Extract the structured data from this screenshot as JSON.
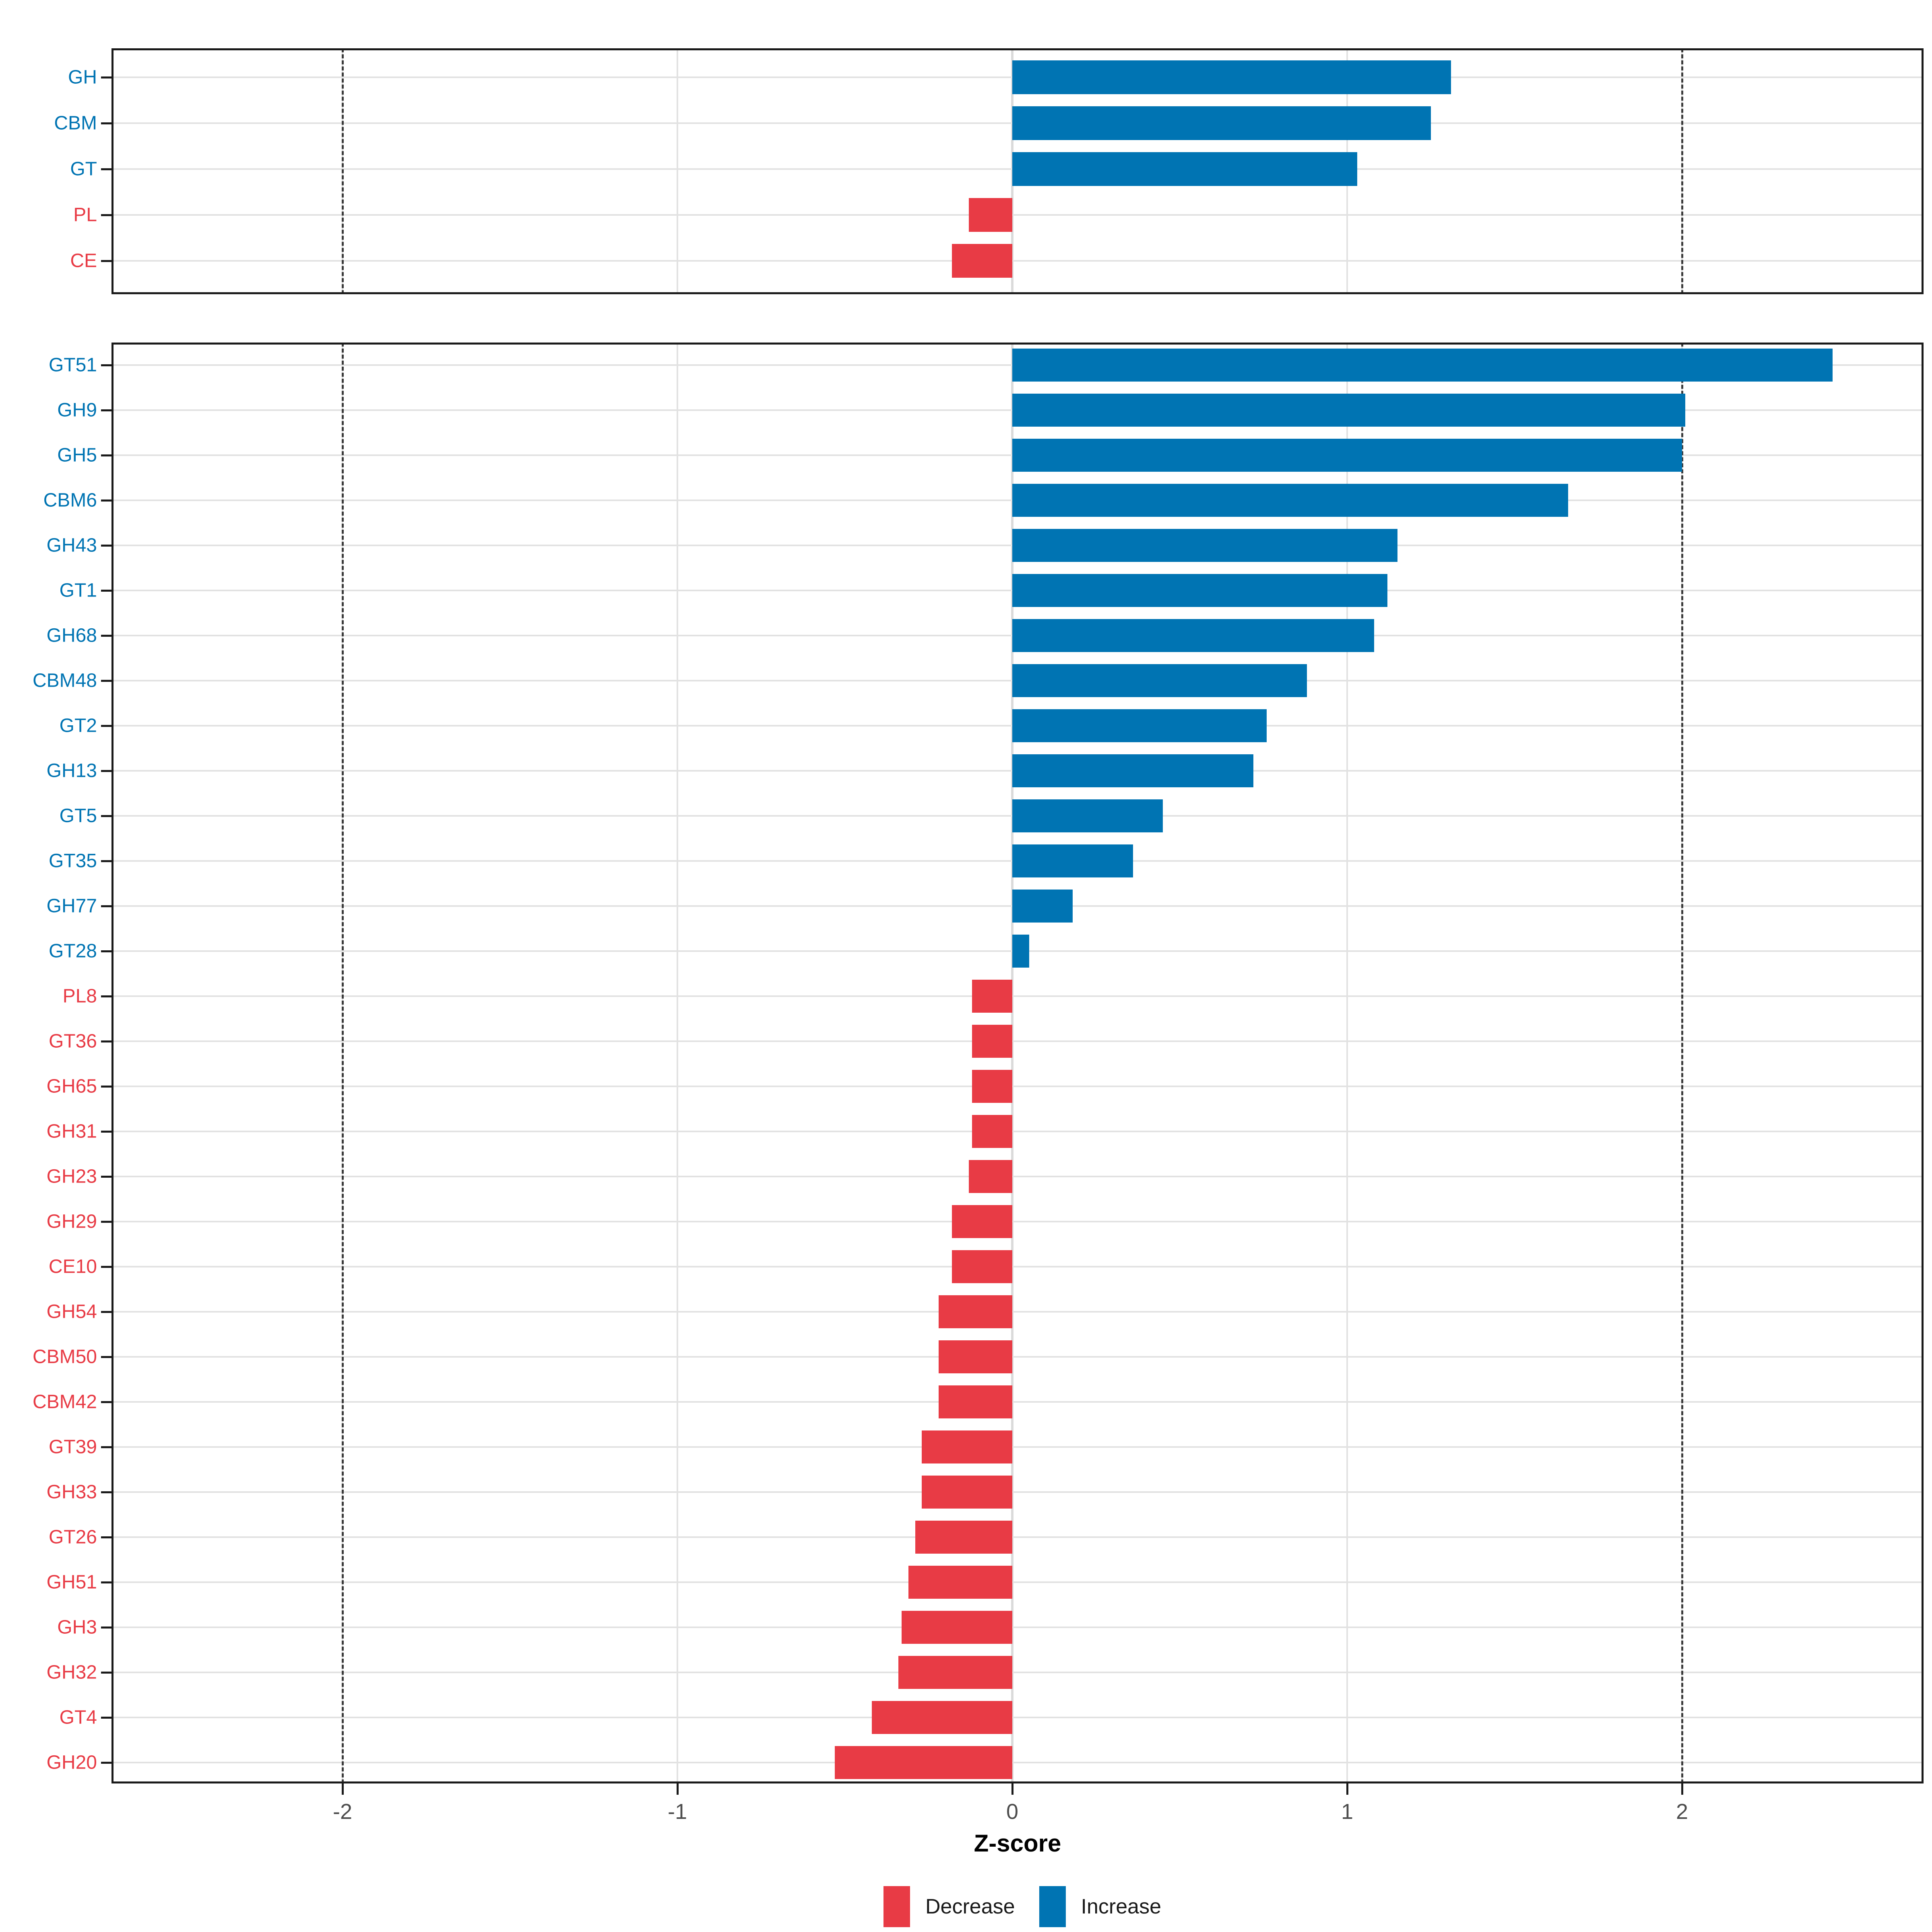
{
  "x_axis": {
    "title": "Z-score",
    "tick_values": [
      -2,
      -1,
      0,
      1,
      2
    ],
    "tick_labels": [
      "-2",
      "-1",
      "0",
      "1",
      "2"
    ],
    "range": [
      -2.69,
      2.72
    ],
    "dashed_reference_lines": [
      -2,
      2
    ]
  },
  "legend": {
    "items": [
      {
        "label": "Decrease",
        "key": "decrease"
      },
      {
        "label": "Increase",
        "key": "increase"
      }
    ]
  },
  "colors": {
    "increase": "#0074b3",
    "decrease": "#e83b45",
    "label_increase": "#0074b3",
    "label_decrease": "#e83b45",
    "grid": "#e2e2e2",
    "zero_grid": "#dadada",
    "dashed": "#3a3a3a",
    "panel_border": "#1a1a1a",
    "tick_label": "#4d4d4d",
    "background": "#ffffff"
  },
  "chart_data": [
    {
      "type": "bar",
      "orientation": "horizontal",
      "panel": "cazyme-classes",
      "xlabel": "Z-score",
      "xlim": [
        -2.69,
        2.72
      ],
      "grid": true,
      "categories": [
        "GH",
        "CBM",
        "GT",
        "PL",
        "CE"
      ],
      "values": [
        1.31,
        1.25,
        1.03,
        -0.13,
        -0.18
      ]
    },
    {
      "type": "bar",
      "orientation": "horizontal",
      "panel": "cazyme-families",
      "xlabel": "Z-score",
      "xlim": [
        -2.69,
        2.72
      ],
      "grid": true,
      "categories": [
        "GT51",
        "GH9",
        "GH5",
        "CBM6",
        "GH43",
        "GT1",
        "GH68",
        "CBM48",
        "GT2",
        "GH13",
        "GT5",
        "GT35",
        "GH77",
        "GT28",
        "PL8",
        "GT36",
        "GH65",
        "GH31",
        "GH23",
        "GH29",
        "CE10",
        "GH54",
        "CBM50",
        "CBM42",
        "GT39",
        "GH33",
        "GT26",
        "GH51",
        "GH3",
        "GH32",
        "GT4",
        "GH20"
      ],
      "values": [
        2.45,
        2.01,
        2.0,
        1.66,
        1.15,
        1.12,
        1.08,
        0.88,
        0.76,
        0.72,
        0.45,
        0.36,
        0.18,
        0.05,
        -0.12,
        -0.12,
        -0.12,
        -0.12,
        -0.13,
        -0.18,
        -0.18,
        -0.22,
        -0.22,
        -0.22,
        -0.27,
        -0.27,
        -0.29,
        -0.31,
        -0.33,
        -0.34,
        -0.42,
        -0.53
      ]
    }
  ]
}
